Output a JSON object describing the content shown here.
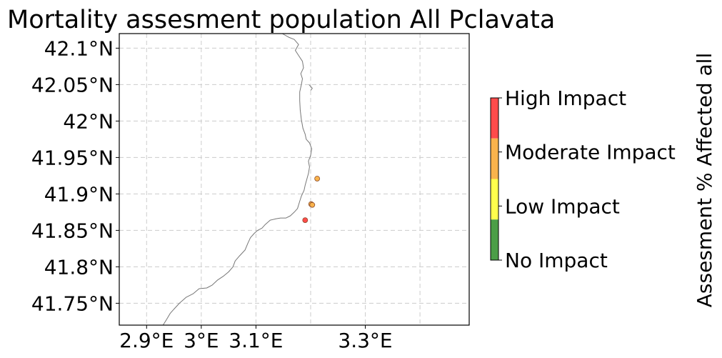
{
  "title": "Mortality assesment population All Pclavata",
  "map": {
    "lon_range": [
      2.85,
      3.49
    ],
    "lat_range": [
      41.72,
      42.12
    ],
    "lon_ticks": [
      {
        "value": 2.9,
        "label": "2.9°E"
      },
      {
        "value": 3.0,
        "label": "3°E"
      },
      {
        "value": 3.1,
        "label": "3.1°E"
      },
      {
        "value": 3.3,
        "label": "3.3°E"
      }
    ],
    "lon_grid": [
      2.9,
      3.0,
      3.1,
      3.2,
      3.3,
      3.4
    ],
    "lat_ticks": [
      {
        "value": 42.1,
        "label": "42.1°N"
      },
      {
        "value": 42.05,
        "label": "42.05°N"
      },
      {
        "value": 42.0,
        "label": "42°N"
      },
      {
        "value": 41.95,
        "label": "41.95°N"
      },
      {
        "value": 41.9,
        "label": "41.9°N"
      },
      {
        "value": 41.85,
        "label": "41.85°N"
      },
      {
        "value": 41.8,
        "label": "41.8°N"
      },
      {
        "value": 41.75,
        "label": "41.75°N"
      }
    ],
    "grid": true,
    "coastline": [
      [
        3.148,
        42.12
      ],
      [
        3.16,
        42.115
      ],
      [
        3.17,
        42.112
      ],
      [
        3.178,
        42.105
      ],
      [
        3.172,
        42.097
      ],
      [
        3.178,
        42.09
      ],
      [
        3.185,
        42.082
      ],
      [
        3.187,
        42.073
      ],
      [
        3.182,
        42.065
      ],
      [
        3.185,
        42.058
      ],
      [
        3.183,
        42.05
      ],
      [
        3.18,
        42.04
      ],
      [
        3.18,
        42.028
      ],
      [
        3.181,
        42.015
      ],
      [
        3.183,
        42.002
      ],
      [
        3.186,
        41.99
      ],
      [
        3.19,
        41.982
      ],
      [
        3.192,
        41.975
      ],
      [
        3.198,
        41.97
      ],
      [
        3.202,
        41.962
      ],
      [
        3.2,
        41.953
      ],
      [
        3.196,
        41.945
      ],
      [
        3.198,
        41.937
      ],
      [
        3.196,
        41.928
      ],
      [
        3.193,
        41.92
      ],
      [
        3.19,
        41.912
      ],
      [
        3.188,
        41.905
      ],
      [
        3.183,
        41.897
      ],
      [
        3.18,
        41.89
      ],
      [
        3.176,
        41.88
      ],
      [
        3.17,
        41.875
      ],
      [
        3.163,
        41.87
      ],
      [
        3.155,
        41.867
      ],
      [
        3.145,
        41.867
      ],
      [
        3.137,
        41.866
      ],
      [
        3.126,
        41.864
      ],
      [
        3.117,
        41.858
      ],
      [
        3.111,
        41.853
      ],
      [
        3.103,
        41.85
      ],
      [
        3.097,
        41.846
      ],
      [
        3.09,
        41.84
      ],
      [
        3.085,
        41.832
      ],
      [
        3.08,
        41.823
      ],
      [
        3.07,
        41.815
      ],
      [
        3.062,
        41.808
      ],
      [
        3.058,
        41.8
      ],
      [
        3.05,
        41.793
      ],
      [
        3.04,
        41.787
      ],
      [
        3.03,
        41.782
      ],
      [
        3.02,
        41.775
      ],
      [
        3.01,
        41.771
      ],
      [
        2.996,
        41.77
      ],
      [
        2.985,
        41.763
      ],
      [
        2.972,
        41.758
      ],
      [
        2.96,
        41.75
      ],
      [
        2.95,
        41.742
      ],
      [
        2.943,
        41.736
      ],
      [
        2.936,
        41.727
      ],
      [
        2.93,
        41.72
      ]
    ],
    "islet": [
      [
        3.197,
        42.05
      ],
      [
        3.203,
        42.045
      ],
      [
        3.2,
        42.042
      ]
    ],
    "sites": [
      {
        "lon": 3.212,
        "lat": 41.921,
        "impact": "Moderate Impact"
      },
      {
        "lon": 3.201,
        "lat": 41.886,
        "impact": "Moderate Impact"
      },
      {
        "lon": 3.203,
        "lat": 41.885,
        "impact": "Moderate Impact"
      },
      {
        "lon": 3.19,
        "lat": 41.864,
        "impact": "High Impact"
      }
    ]
  },
  "colorbar": {
    "label": "Assesment % Affected all",
    "classes": [
      {
        "label": "High Impact",
        "color": "#ff4b4b"
      },
      {
        "label": "Moderate Impact",
        "color": "#f9b34c"
      },
      {
        "label": "Low Impact",
        "color": "#ffff4c"
      },
      {
        "label": "No Impact",
        "color": "#4b9e47"
      }
    ]
  },
  "colors": {
    "coastline": "#777777",
    "grid": "#cccccc",
    "marker_edge": "#8a4a2a"
  }
}
